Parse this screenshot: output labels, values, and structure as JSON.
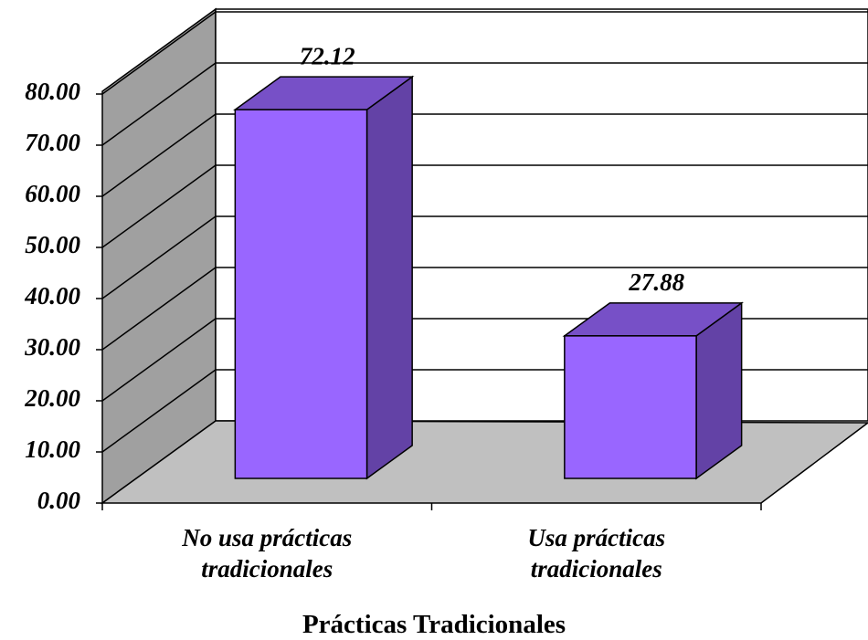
{
  "chart_data": {
    "type": "bar3d",
    "categories": [
      "No usa prácticas\ntradicionales",
      "Usa prácticas\ntradicionales"
    ],
    "values": [
      72.12,
      27.88
    ],
    "color": "#9966ff",
    "ylim": [
      0,
      80
    ],
    "yticks": [
      {
        "value": 0,
        "label": "0.00"
      },
      {
        "value": 10,
        "label": "10.00"
      },
      {
        "value": 20,
        "label": "20.00"
      },
      {
        "value": 30,
        "label": "30.00"
      },
      {
        "value": 40,
        "label": "40.00"
      },
      {
        "value": 50,
        "label": "50.00"
      },
      {
        "value": 60,
        "label": "60.00"
      },
      {
        "value": 70,
        "label": "70.00"
      },
      {
        "value": 80,
        "label": "80.00"
      }
    ],
    "grid": true,
    "xlabel": "Prácticas Tradicionales"
  }
}
